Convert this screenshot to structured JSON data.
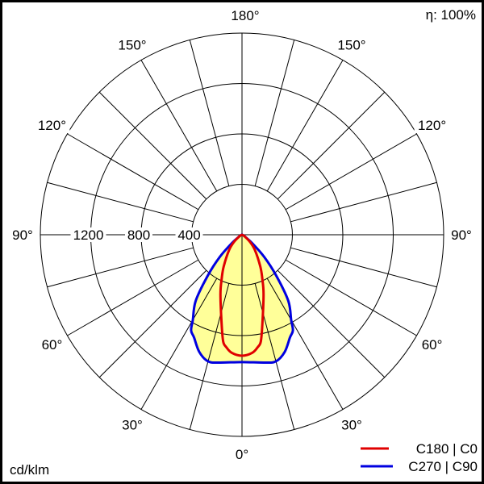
{
  "chart_data": {
    "type": "polar",
    "unit_label": "cd/klm",
    "efficiency_label": "η: 100%",
    "radial_ticks": [
      400,
      800,
      1200,
      1600
    ],
    "radial_tick_labels": [
      "400",
      "800",
      "1200"
    ],
    "rlim": [
      0,
      1600
    ],
    "angle_labels": [
      "0°",
      "30°",
      "60°",
      "90°",
      "120°",
      "150°",
      "180°"
    ],
    "angle_grid_step_deg": 15,
    "fill_color": "#ffff99",
    "series": [
      {
        "name": "C180 | C0",
        "color": "#e00000",
        "angles": [
          0,
          5,
          8,
          10,
          13,
          20,
          25,
          30,
          40,
          48,
          60,
          90
        ],
        "values": [
          960,
          940,
          900,
          860,
          720,
          500,
          380,
          290,
          160,
          85,
          20,
          0
        ]
      },
      {
        "name": "C270 | C90",
        "color": "#0000e0",
        "angles": [
          0,
          10,
          15,
          20,
          25,
          28,
          30,
          35,
          40,
          45,
          50,
          60,
          70,
          90
        ],
        "values": [
          1010,
          1030,
          1040,
          990,
          900,
          860,
          780,
          640,
          420,
          250,
          110,
          20,
          0,
          0
        ]
      }
    ]
  }
}
